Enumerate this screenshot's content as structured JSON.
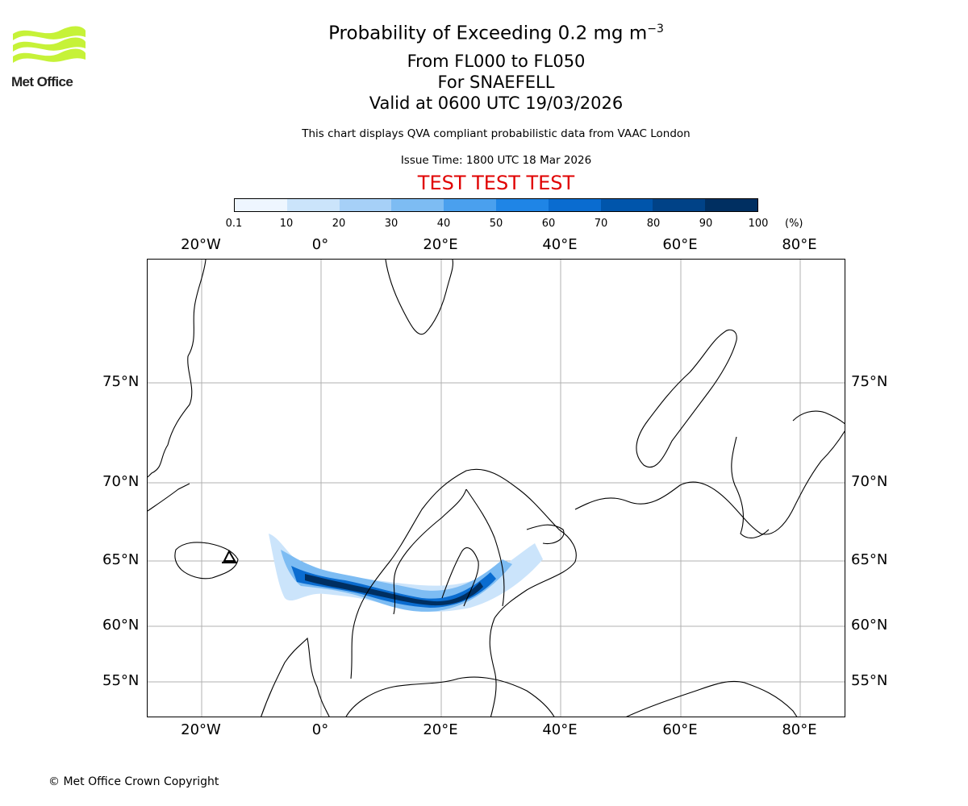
{
  "logo": {
    "text": "Met Office",
    "color": "#c6f238"
  },
  "header": {
    "title_main": "Probability of Exceeding 0.2 mg m",
    "title_sup": "−3",
    "level_range": "From FL000 to FL050",
    "volcano": "For SNAEFELL",
    "valid_time": "Valid at 0600 UTC 19/03/2026",
    "description": "This chart displays QVA compliant probabilistic data from VAAC London",
    "issue_time": "Issue Time: 1800 UTC 18 Mar 2026",
    "test_banner": "TEST TEST TEST"
  },
  "colorbar": {
    "ticks": [
      "0.1",
      "10",
      "20",
      "30",
      "40",
      "50",
      "60",
      "70",
      "80",
      "90",
      "100"
    ],
    "unit": "(%)",
    "colors": [
      "#eef6ff",
      "#cbe4fb",
      "#a6d0f7",
      "#7dbcf3",
      "#4aa0ee",
      "#1f85e6",
      "#0a6cd0",
      "#0055ab",
      "#004287",
      "#002f61"
    ]
  },
  "map": {
    "lon_labels": [
      "20°W",
      "0°",
      "20°E",
      "40°E",
      "60°E",
      "80°E"
    ],
    "lat_labels": [
      "75°N",
      "70°N",
      "65°N",
      "60°N",
      "55°N"
    ],
    "grid_color": "#b0b0b0",
    "plume_intensity_legend_min": 0.1,
    "plume_intensity_legend_max": 100
  },
  "footer": {
    "copyright": "© Met Office Crown Copyright"
  }
}
